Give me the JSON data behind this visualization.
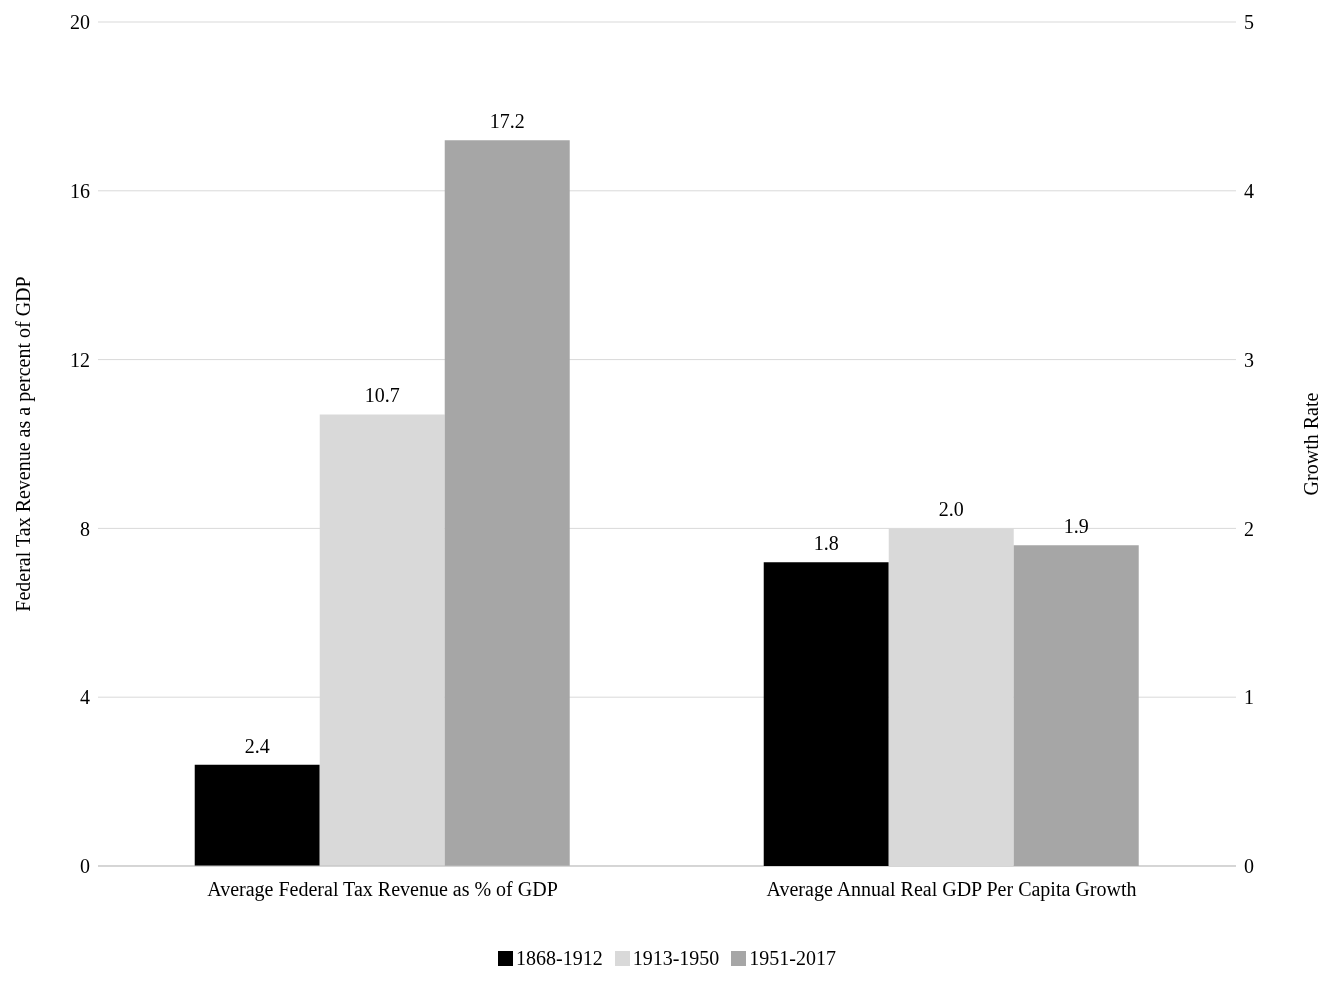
{
  "chart_data": {
    "type": "bar",
    "categories": [
      "Average Federal Tax Revenue as % of GDP",
      "Average Annual Real GDP Per Capita Growth"
    ],
    "ylabel": "Federal Tax Revenue as a percent of GDP",
    "y2label": "Growth Rate",
    "ylim": [
      0,
      20
    ],
    "yticks": [
      0,
      4,
      8,
      12,
      16,
      20
    ],
    "y2lim": [
      0,
      5
    ],
    "y2ticks": [
      0,
      1,
      2,
      3,
      4,
      5
    ],
    "series": [
      {
        "name": "1868-1912",
        "color": "#000000",
        "values": [
          2.4,
          null
        ],
        "value_labels": [
          "2.4",
          null
        ]
      },
      {
        "name": "1913-1950",
        "color": "#d9d9d9",
        "values": [
          10.7,
          null
        ],
        "value_labels": [
          "10.7",
          null
        ]
      },
      {
        "name": "1951-2017",
        "color": "#a6a6a6",
        "values": [
          17.2,
          null
        ],
        "value_labels": [
          "17.2",
          null
        ]
      },
      {
        "color": "#000000",
        "axis": "y2",
        "values": [
          null,
          1.8
        ],
        "value_labels": [
          null,
          "1.8"
        ]
      },
      {
        "color": "#d9d9d9",
        "axis": "y2",
        "values": [
          null,
          2.0
        ],
        "value_labels": [
          null,
          "2.0"
        ]
      },
      {
        "color": "#a6a6a6",
        "axis": "y2",
        "values": [
          null,
          1.9
        ],
        "value_labels": [
          null,
          "1.9"
        ]
      }
    ],
    "grid": "y",
    "legend": "bottom"
  }
}
